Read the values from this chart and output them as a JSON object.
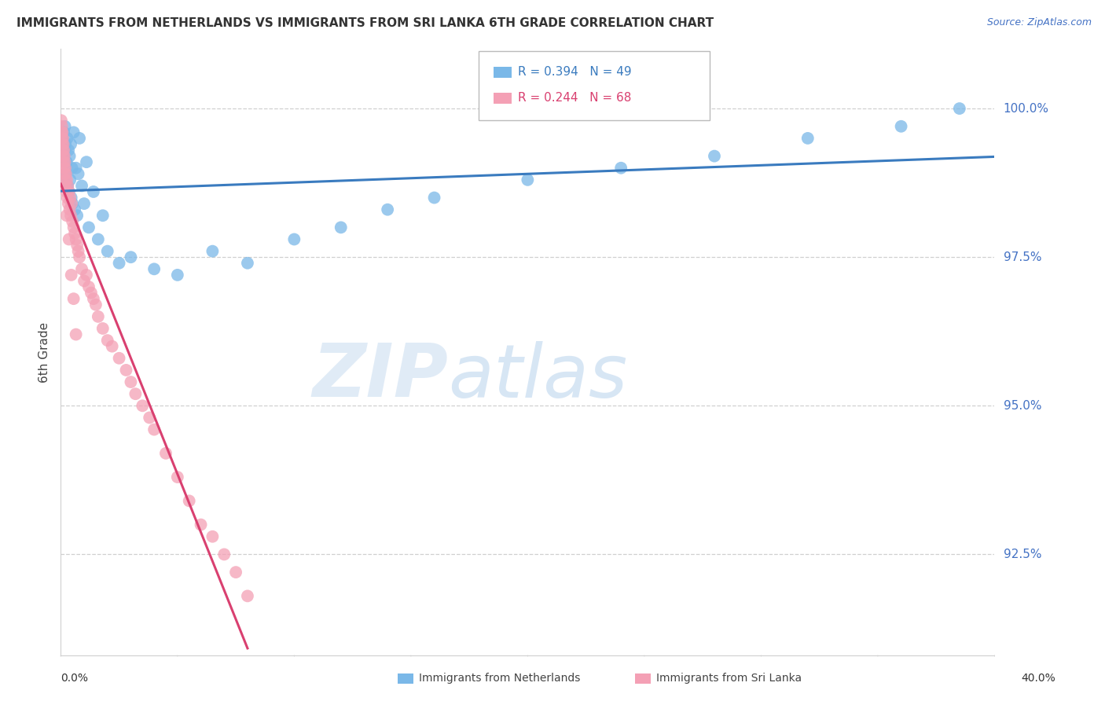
{
  "title": "IMMIGRANTS FROM NETHERLANDS VS IMMIGRANTS FROM SRI LANKA 6TH GRADE CORRELATION CHART",
  "source": "Source: ZipAtlas.com",
  "ylabel": "6th Grade",
  "xmin": 0.0,
  "xmax": 40.0,
  "ymin": 90.8,
  "ymax": 101.0,
  "yticks": [
    100.0,
    97.5,
    95.0,
    92.5
  ],
  "ytick_labels": [
    "100.0%",
    "97.5%",
    "95.0%",
    "92.5%"
  ],
  "legend_r1": "R = 0.394",
  "legend_n1": "N = 49",
  "legend_r2": "R = 0.244",
  "legend_n2": "N = 68",
  "blue_color": "#7ab8e8",
  "pink_color": "#f4a0b5",
  "blue_line_color": "#3a7bbf",
  "pink_line_color": "#d94070",
  "label1": "Immigrants from Netherlands",
  "label2": "Immigrants from Sri Lanka",
  "watermark_zip": "ZIP",
  "watermark_atlas": "atlas",
  "nl_x": [
    0.05,
    0.08,
    0.1,
    0.13,
    0.15,
    0.18,
    0.2,
    0.22,
    0.25,
    0.28,
    0.3,
    0.33,
    0.35,
    0.38,
    0.4,
    0.43,
    0.45,
    0.48,
    0.5,
    0.55,
    0.6,
    0.65,
    0.7,
    0.75,
    0.8,
    0.9,
    1.0,
    1.1,
    1.2,
    1.4,
    1.6,
    1.8,
    2.0,
    2.5,
    3.0,
    4.0,
    5.0,
    6.5,
    8.0,
    10.0,
    12.0,
    14.0,
    16.0,
    20.0,
    24.0,
    28.0,
    32.0,
    36.0,
    38.5
  ],
  "nl_y": [
    99.2,
    99.5,
    98.8,
    99.6,
    99.3,
    99.7,
    99.4,
    98.9,
    99.1,
    99.5,
    98.7,
    99.3,
    98.6,
    99.2,
    98.8,
    99.4,
    98.5,
    99.0,
    98.4,
    99.6,
    98.3,
    99.0,
    98.2,
    98.9,
    99.5,
    98.7,
    98.4,
    99.1,
    98.0,
    98.6,
    97.8,
    98.2,
    97.6,
    97.4,
    97.5,
    97.3,
    97.2,
    97.6,
    97.4,
    97.8,
    98.0,
    98.3,
    98.5,
    98.8,
    99.0,
    99.2,
    99.5,
    99.7,
    100.0
  ],
  "sl_x": [
    0.02,
    0.03,
    0.04,
    0.05,
    0.06,
    0.07,
    0.08,
    0.09,
    0.1,
    0.11,
    0.12,
    0.13,
    0.14,
    0.15,
    0.16,
    0.17,
    0.18,
    0.19,
    0.2,
    0.22,
    0.24,
    0.26,
    0.28,
    0.3,
    0.32,
    0.35,
    0.38,
    0.4,
    0.43,
    0.46,
    0.5,
    0.55,
    0.6,
    0.65,
    0.7,
    0.75,
    0.8,
    0.9,
    1.0,
    1.1,
    1.2,
    1.3,
    1.4,
    1.5,
    1.6,
    1.8,
    2.0,
    2.2,
    2.5,
    2.8,
    3.0,
    3.2,
    3.5,
    3.8,
    4.0,
    4.5,
    5.0,
    5.5,
    6.0,
    6.5,
    7.0,
    7.5,
    8.0,
    0.25,
    0.35,
    0.45,
    0.55,
    0.65
  ],
  "sl_y": [
    99.8,
    99.6,
    99.5,
    99.7,
    99.4,
    99.6,
    99.3,
    99.5,
    99.2,
    99.4,
    99.1,
    99.3,
    99.0,
    99.2,
    98.9,
    99.1,
    98.8,
    99.0,
    98.7,
    98.9,
    98.6,
    98.8,
    98.5,
    98.7,
    98.4,
    98.6,
    98.3,
    98.5,
    98.2,
    98.4,
    98.1,
    98.0,
    97.9,
    97.8,
    97.7,
    97.6,
    97.5,
    97.3,
    97.1,
    97.2,
    97.0,
    96.9,
    96.8,
    96.7,
    96.5,
    96.3,
    96.1,
    96.0,
    95.8,
    95.6,
    95.4,
    95.2,
    95.0,
    94.8,
    94.6,
    94.2,
    93.8,
    93.4,
    93.0,
    92.8,
    92.5,
    92.2,
    91.8,
    98.2,
    97.8,
    97.2,
    96.8,
    96.2
  ]
}
